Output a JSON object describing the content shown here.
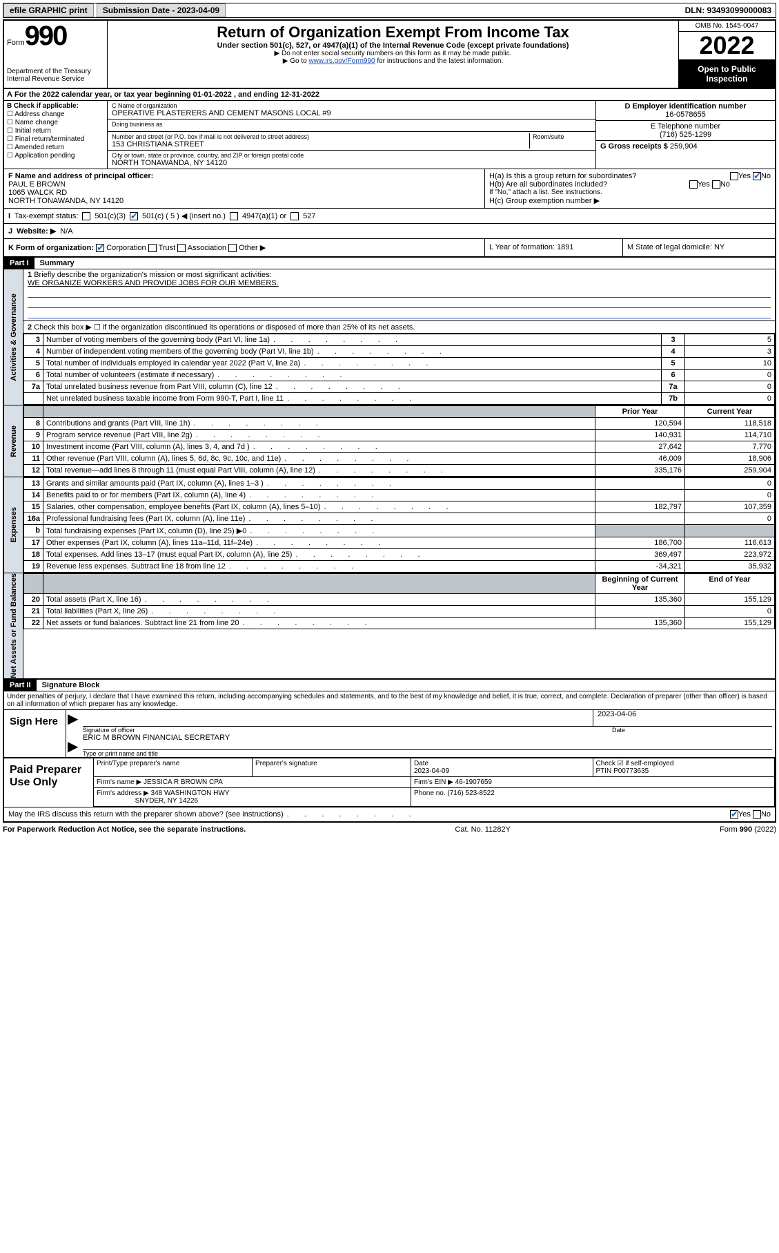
{
  "topbar": {
    "efile": "efile GRAPHIC print",
    "sub_lbl": "Submission Date - 2023-04-09",
    "dln": "DLN: 93493099000083"
  },
  "header": {
    "form_word": "Form",
    "form_num": "990",
    "dept": "Department of the Treasury",
    "irs": "Internal Revenue Service",
    "title": "Return of Organization Exempt From Income Tax",
    "sub": "Under section 501(c), 527, or 4947(a)(1) of the Internal Revenue Code (except private foundations)",
    "note1": "▶ Do not enter social security numbers on this form as it may be made public.",
    "note2_a": "▶ Go to ",
    "note2_link": "www.irs.gov/Form990",
    "note2_b": " for instructions and the latest information.",
    "omb": "OMB No. 1545-0047",
    "year": "2022",
    "open": "Open to Public Inspection"
  },
  "rowA": "For the 2022 calendar year, or tax year beginning 01-01-2022    , and ending 12-31-2022",
  "boxB": {
    "hdr": "B Check if applicable:",
    "items": [
      "☐ Address change",
      "☐ Name change",
      "☐ Initial return",
      "☐ Final return/terminated",
      "☐ Amended return",
      "☐ Application pending"
    ]
  },
  "boxC": {
    "name_lbl": "C Name of organization",
    "name": "OPERATIVE PLASTERERS AND CEMENT MASONS LOCAL #9",
    "dba_lbl": "Doing business as",
    "addr_lbl": "Number and street (or P.O. box if mail is not delivered to street address)",
    "room_lbl": "Room/suite",
    "addr": "153 CHRISTIANA STREET",
    "city_lbl": "City or town, state or province, country, and ZIP or foreign postal code",
    "city": "NORTH TONAWANDA, NY  14120"
  },
  "boxD": {
    "lbl": "D Employer identification number",
    "val": "16-0578655"
  },
  "boxE": {
    "lbl": "E Telephone number",
    "val": "(716) 525-1299"
  },
  "boxG": {
    "lbl": "G Gross receipts $",
    "val": "259,904"
  },
  "boxF": {
    "lbl": "F  Name and address of principal officer:",
    "l1": "PAUL E BROWN",
    "l2": "1065 WALCK RD",
    "l3": "NORTH TONAWANDA, NY  14120"
  },
  "boxH": {
    "a": "H(a)  Is this a group return for subordinates?",
    "b": "H(b)  Are all subordinates included?",
    "note": "If \"No,\" attach a list. See instructions.",
    "c": "H(c)  Group exemption number ▶",
    "yes": "Yes",
    "no": "No"
  },
  "rowI": {
    "lbl": "Tax-exempt status:",
    "o1": "501(c)(3)",
    "o2": "501(c) ( 5 ) ◀ (insert no.)",
    "o3": "4947(a)(1) or",
    "o4": "527"
  },
  "rowJ": {
    "lbl": "Website: ▶",
    "val": "N/A"
  },
  "rowK": {
    "lbl": "K Form of organization:",
    "o1": "Corporation",
    "o2": "Trust",
    "o3": "Association",
    "o4": "Other ▶",
    "L": "L Year of formation: 1891",
    "M": "M State of legal domicile: NY"
  },
  "parts": {
    "p1": "Part I",
    "p1t": "Summary",
    "p2": "Part II",
    "p2t": "Signature Block"
  },
  "summary": {
    "q1": "Briefly describe the organization's mission or most significant activities:",
    "q1v": "WE ORGANIZE WORKERS AND PROVIDE JOBS FOR OUR MEMBERS.",
    "q2": "Check this box ▶ ☐  if the organization discontinued its operations or disposed of more than 25% of its net assets.",
    "lines_a": [
      {
        "n": "3",
        "d": "Number of voting members of the governing body (Part VI, line 1a)",
        "b": "3",
        "v": "5"
      },
      {
        "n": "4",
        "d": "Number of independent voting members of the governing body (Part VI, line 1b)",
        "b": "4",
        "v": "3"
      },
      {
        "n": "5",
        "d": "Total number of individuals employed in calendar year 2022 (Part V, line 2a)",
        "b": "5",
        "v": "10"
      },
      {
        "n": "6",
        "d": "Total number of volunteers (estimate if necessary)",
        "b": "6",
        "v": "0"
      },
      {
        "n": "7a",
        "d": "Total unrelated business revenue from Part VIII, column (C), line 12",
        "b": "7a",
        "v": "0"
      },
      {
        "n": "",
        "d": "Net unrelated business taxable income from Form 990-T, Part I, line 11",
        "b": "7b",
        "v": "0"
      }
    ],
    "col_prior": "Prior Year",
    "col_curr": "Current Year",
    "rev": [
      {
        "n": "8",
        "d": "Contributions and grants (Part VIII, line 1h)",
        "p": "120,594",
        "c": "118,518"
      },
      {
        "n": "9",
        "d": "Program service revenue (Part VIII, line 2g)",
        "p": "140,931",
        "c": "114,710"
      },
      {
        "n": "10",
        "d": "Investment income (Part VIII, column (A), lines 3, 4, and 7d )",
        "p": "27,642",
        "c": "7,770"
      },
      {
        "n": "11",
        "d": "Other revenue (Part VIII, column (A), lines 5, 6d, 8c, 9c, 10c, and 11e)",
        "p": "46,009",
        "c": "18,906"
      },
      {
        "n": "12",
        "d": "Total revenue—add lines 8 through 11 (must equal Part VIII, column (A), line 12)",
        "p": "335,176",
        "c": "259,904"
      }
    ],
    "exp": [
      {
        "n": "13",
        "d": "Grants and similar amounts paid (Part IX, column (A), lines 1–3 )",
        "p": "",
        "c": "0"
      },
      {
        "n": "14",
        "d": "Benefits paid to or for members (Part IX, column (A), line 4)",
        "p": "",
        "c": "0"
      },
      {
        "n": "15",
        "d": "Salaries, other compensation, employee benefits (Part IX, column (A), lines 5–10)",
        "p": "182,797",
        "c": "107,359"
      },
      {
        "n": "16a",
        "d": "Professional fundraising fees (Part IX, column (A), line 11e)",
        "p": "",
        "c": "0"
      },
      {
        "n": "b",
        "d": "Total fundraising expenses (Part IX, column (D), line 25) ▶0",
        "p": "gray",
        "c": "gray"
      },
      {
        "n": "17",
        "d": "Other expenses (Part IX, column (A), lines 11a–11d, 11f–24e)",
        "p": "186,700",
        "c": "116,613"
      },
      {
        "n": "18",
        "d": "Total expenses. Add lines 13–17 (must equal Part IX, column (A), line 25)",
        "p": "369,497",
        "c": "223,972"
      },
      {
        "n": "19",
        "d": "Revenue less expenses. Subtract line 18 from line 12",
        "p": "-34,321",
        "c": "35,932"
      }
    ],
    "col_beg": "Beginning of Current Year",
    "col_end": "End of Year",
    "net": [
      {
        "n": "20",
        "d": "Total assets (Part X, line 16)",
        "p": "135,360",
        "c": "155,129"
      },
      {
        "n": "21",
        "d": "Total liabilities (Part X, line 26)",
        "p": "",
        "c": "0"
      },
      {
        "n": "22",
        "d": "Net assets or fund balances. Subtract line 21 from line 20",
        "p": "135,360",
        "c": "155,129"
      }
    ],
    "tabs": {
      "gov": "Activities & Governance",
      "rev": "Revenue",
      "exp": "Expenses",
      "net": "Net Assets or Fund Balances"
    }
  },
  "sig": {
    "decl": "Under penalties of perjury, I declare that I have examined this return, including accompanying schedules and statements, and to the best of my knowledge and belief, it is true, correct, and complete. Declaration of preparer (other than officer) is based on all information of which preparer has any knowledge.",
    "sign_here": "Sign Here",
    "sig_off": "Signature of officer",
    "date_lbl": "Date",
    "date": "2023-04-06",
    "name": "ERIC M BROWN  FINANCIAL SECRETARY",
    "name_lbl": "Type or print name and title"
  },
  "prep": {
    "title": "Paid Preparer Use Only",
    "h1": "Print/Type preparer's name",
    "h2": "Preparer's signature",
    "h3": "Date",
    "h4": "PTIN",
    "date": "2023-04-09",
    "self": "Check ☑ if self-employed",
    "ptin": "P00773635",
    "firm_lbl": "Firm's name   ▶",
    "firm": "JESSICA R BROWN CPA",
    "ein_lbl": "Firm's EIN ▶",
    "ein": "46-1907659",
    "addr_lbl": "Firm's address ▶",
    "addr1": "348 WASHINGTON HWY",
    "addr2": "SNYDER, NY  14226",
    "phone_lbl": "Phone no.",
    "phone": "(716) 523-8522"
  },
  "foot": {
    "q": "May the IRS discuss this return with the preparer shown above? (see instructions)",
    "pra": "For Paperwork Reduction Act Notice, see the separate instructions.",
    "cat": "Cat. No. 11282Y",
    "form": "Form 990 (2022)"
  }
}
